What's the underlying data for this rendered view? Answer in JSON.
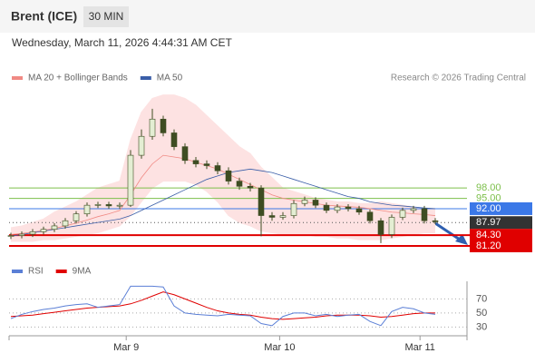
{
  "header": {
    "title": "Brent (ICE)",
    "interval": "30 MIN",
    "timestamp": "Wednesday, March 11, 2026 4:44:31 AM CET"
  },
  "chart_data": [
    {
      "type": "candlestick",
      "credit": "Research © 2026 Trading Central",
      "xlim": [
        0,
        39
      ],
      "ylim": [
        77.5,
        131.5
      ],
      "up_color": "#e4eed3",
      "down_color": "#3e4d22",
      "wick_color": "#3e4d22",
      "open": [
        84.0,
        84.2,
        84.6,
        85.3,
        86.0,
        87.0,
        88.5,
        90.5,
        93.0,
        93.2,
        92.8,
        93.0,
        107.5,
        113,
        118,
        114,
        110,
        106,
        105,
        104.5,
        103,
        100,
        98.5,
        98,
        90,
        89.5,
        90,
        93.5,
        94.5,
        93,
        91.5,
        92.5,
        92,
        91,
        88.5,
        84.5,
        89.5,
        91.5,
        92,
        88.5
      ],
      "high": [
        85.0,
        85.4,
        86.1,
        86.8,
        87.8,
        89.3,
        91.3,
        93.8,
        94.0,
        94.0,
        93.8,
        109,
        115,
        121,
        119,
        115,
        111,
        107,
        106,
        105.5,
        104,
        101,
        99.5,
        98.8,
        91,
        91,
        94.5,
        95.5,
        95.3,
        93.8,
        93.3,
        93.3,
        92.8,
        91.8,
        89.3,
        90.3,
        92.3,
        92.8,
        92.8,
        89.3
      ],
      "low": [
        83.2,
        83.4,
        83.8,
        84.5,
        85.2,
        86.2,
        87.7,
        89.7,
        92.2,
        92,
        92,
        92.5,
        106.5,
        112,
        113,
        109,
        105,
        104,
        103.5,
        102,
        99,
        97.5,
        97,
        84,
        88.5,
        88.8,
        89.2,
        92.7,
        92.2,
        90.7,
        90.7,
        91.2,
        90.2,
        87.7,
        82,
        83.5,
        88.7,
        90.7,
        87.7,
        87.5
      ],
      "close": [
        84.2,
        84.6,
        85.3,
        86.0,
        87.0,
        88.5,
        90.5,
        93.0,
        93.2,
        92.8,
        93.0,
        107.5,
        113,
        118,
        114,
        110,
        106,
        105,
        104.5,
        103,
        100,
        98.5,
        98,
        90,
        89.5,
        90,
        93.5,
        94.5,
        93,
        91.5,
        92.5,
        92,
        91,
        88.5,
        84.5,
        89.5,
        91.5,
        92,
        88.5,
        88.2
      ],
      "series": [
        {
          "name": "MA 20 + Bollinger Bands",
          "color": "#f08a84",
          "values": [
            84.5,
            84.8,
            85.2,
            85.7,
            86.3,
            87,
            87.8,
            88.7,
            89.7,
            90.5,
            91.5,
            96,
            101,
            105,
            107.5,
            107,
            106.5,
            105.5,
            104.5,
            103.5,
            102,
            100.5,
            99,
            97.5,
            96,
            95,
            94.5,
            94,
            93.5,
            93,
            92.8,
            92.6,
            92.4,
            92,
            91.5,
            91,
            90.8,
            90.5,
            90.3,
            90
          ]
        },
        {
          "name": "MA 50",
          "color": "#3a5ea8",
          "values": [
            84,
            84.5,
            85,
            85.5,
            86,
            86.5,
            87,
            87.5,
            88,
            88.5,
            89,
            90,
            91.5,
            93,
            94.5,
            96,
            97.5,
            99,
            100.5,
            101.5,
            102.5,
            103,
            103.5,
            103,
            102.5,
            101.5,
            100.5,
            99.5,
            98.5,
            97.5,
            96.5,
            95.5,
            95,
            94,
            93.5,
            93,
            92.8,
            92.5,
            92.2,
            92
          ]
        }
      ],
      "bands": {
        "color": "#fde2e2",
        "upper": [
          86.5,
          87,
          88,
          89,
          91,
          92.5,
          94,
          96,
          98,
          99,
          100,
          112,
          120,
          124,
          125,
          125,
          124,
          122,
          119,
          116,
          113,
          110,
          108,
          104,
          101,
          98,
          97,
          96,
          95,
          94.5,
          94,
          94,
          93.5,
          93.5,
          94,
          93.5,
          93,
          92.5,
          92,
          92
        ],
        "lower": [
          82.5,
          82.5,
          82.5,
          83,
          83,
          83.5,
          84,
          84.5,
          85,
          86,
          87,
          90,
          94,
          98,
          100,
          100,
          100,
          99,
          97,
          94,
          90,
          88,
          87,
          85.5,
          85,
          84.5,
          84.5,
          84.5,
          84,
          84,
          83.5,
          83.5,
          83,
          83,
          83,
          83.5,
          84,
          84.5,
          85,
          85
        ]
      },
      "levels": [
        {
          "value": 98,
          "label": "98.00",
          "color": "#7cbf4a",
          "style": "line"
        },
        {
          "value": 95,
          "label": "95.00",
          "color": "#7cbf4a",
          "style": "line"
        },
        {
          "value": 92,
          "label": "92.00",
          "color": "#3b78e7",
          "style": "box"
        },
        {
          "value": 87.97,
          "label": "87.97",
          "color": "#333333",
          "style": "current"
        },
        {
          "value": 84.3,
          "label": "84.30",
          "color": "#e00000",
          "style": "box"
        },
        {
          "value": 81.2,
          "label": "81.20",
          "color": "#e00000",
          "style": "box"
        }
      ]
    },
    {
      "type": "line",
      "xlim": [
        0,
        39
      ],
      "ylim": [
        15,
        95
      ],
      "yticks": [
        70,
        50,
        30
      ],
      "grid": true,
      "xticks": [
        {
          "value": 10.6,
          "label": "Mar 9"
        },
        {
          "value": 24.7,
          "label": "Mar 10"
        },
        {
          "value": 37.6,
          "label": "Mar 11"
        }
      ],
      "series": [
        {
          "name": "RSI",
          "color": "#5b7fd6",
          "values": [
            42,
            48,
            52,
            55,
            57,
            60,
            62,
            63,
            58,
            60,
            62,
            88,
            88,
            88,
            87,
            60,
            50,
            48,
            47,
            46,
            48,
            47,
            46,
            35,
            32,
            45,
            50,
            50,
            46,
            48,
            45,
            47,
            48,
            38,
            32,
            52,
            58,
            56,
            50,
            48
          ]
        },
        {
          "name": "9MA",
          "color": "#e00000",
          "values": [
            45,
            46,
            47,
            49,
            51,
            53,
            55,
            57,
            58,
            59,
            60,
            63,
            68,
            74,
            80,
            76,
            70,
            64,
            58,
            53,
            50,
            48,
            47,
            44,
            42,
            41,
            42,
            43,
            44,
            46,
            47,
            47,
            47,
            46,
            44,
            45,
            47,
            49,
            50,
            50
          ]
        }
      ]
    }
  ]
}
